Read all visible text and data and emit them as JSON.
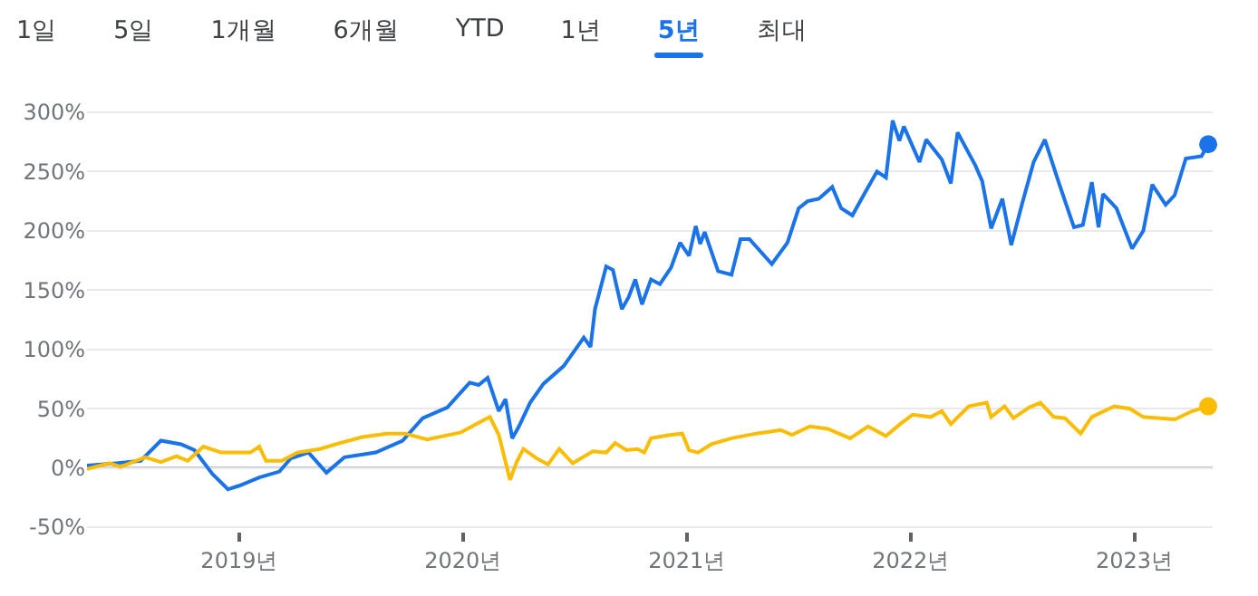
{
  "chart_data": {
    "type": "line",
    "annotations": [
      "1일",
      "5일",
      "1개월",
      "6개월",
      "YTD",
      "1년",
      "5년",
      "최대"
    ],
    "series": [
      {
        "color": "#1a73e8",
        "x": [
          2018.32,
          2018.45,
          2018.56,
          2018.65,
          2018.74,
          2018.8,
          2018.88,
          2018.95,
          2019.0,
          2019.09,
          2019.18,
          2019.23,
          2019.31,
          2019.39,
          2019.47,
          2019.61,
          2019.73,
          2019.82,
          2019.93,
          2020.03,
          2020.07,
          2020.11,
          2020.16,
          2020.19,
          2020.22,
          2020.25,
          2020.3,
          2020.36,
          2020.45,
          2020.54,
          2020.57,
          2020.59,
          2020.64,
          2020.67,
          2020.71,
          2020.74,
          2020.77,
          2020.8,
          2020.84,
          2020.88,
          2020.93,
          2020.97,
          2021.01,
          2021.04,
          2021.06,
          2021.08,
          2021.14,
          2021.2,
          2021.24,
          2021.28,
          2021.38,
          2021.45,
          2021.5,
          2021.54,
          2021.59,
          2021.65,
          2021.69,
          2021.74,
          2021.79,
          2021.85,
          2021.89,
          2021.92,
          2021.95,
          2021.97,
          2022.04,
          2022.07,
          2022.14,
          2022.18,
          2022.21,
          2022.29,
          2022.32,
          2022.36,
          2022.41,
          2022.45,
          2022.5,
          2022.55,
          2022.6,
          2022.66,
          2022.73,
          2022.77,
          2022.81,
          2022.84,
          2022.86,
          2022.92,
          2022.99,
          2023.04,
          2023.08,
          2023.14,
          2023.18,
          2023.23,
          2023.3,
          2023.33
        ],
        "values": [
          2,
          4,
          6,
          23,
          20,
          15,
          -5,
          -18,
          -15,
          -8,
          -3,
          8,
          13,
          -4,
          9,
          13,
          23,
          42,
          51,
          72,
          70,
          76,
          48,
          58,
          25,
          35,
          55,
          71,
          86,
          110,
          102,
          134,
          170,
          167,
          134,
          144,
          159,
          138,
          159,
          155,
          169,
          190,
          179,
          204,
          189,
          199,
          166,
          163,
          193,
          193,
          172,
          190,
          219,
          225,
          227,
          237,
          219,
          213,
          230,
          250,
          245,
          293,
          276,
          288,
          258,
          277,
          260,
          240,
          283,
          255,
          242,
          202,
          227,
          188,
          224,
          258,
          277,
          242,
          203,
          205,
          241,
          203,
          231,
          219,
          185,
          200,
          239,
          222,
          230,
          261,
          263,
          273
        ]
      },
      {
        "color": "#fbbc04",
        "x": [
          2018.32,
          2018.42,
          2018.47,
          2018.58,
          2018.65,
          2018.72,
          2018.77,
          2018.84,
          2018.92,
          2019.05,
          2019.09,
          2019.12,
          2019.19,
          2019.26,
          2019.36,
          2019.45,
          2019.55,
          2019.66,
          2019.74,
          2019.84,
          2019.99,
          2020.12,
          2020.16,
          2020.21,
          2020.24,
          2020.27,
          2020.33,
          2020.38,
          2020.43,
          2020.49,
          2020.58,
          2020.64,
          2020.68,
          2020.73,
          2020.78,
          2020.81,
          2020.84,
          2020.93,
          2020.98,
          2021.01,
          2021.05,
          2021.11,
          2021.2,
          2021.31,
          2021.42,
          2021.47,
          2021.55,
          2021.63,
          2021.73,
          2021.81,
          2021.89,
          2021.96,
          2022.01,
          2022.09,
          2022.14,
          2022.18,
          2022.26,
          2022.34,
          2022.36,
          2022.42,
          2022.46,
          2022.53,
          2022.58,
          2022.64,
          2022.69,
          2022.76,
          2022.81,
          2022.91,
          2022.98,
          2023.04,
          2023.18,
          2023.26,
          2023.33
        ],
        "values": [
          -1,
          4,
          1,
          9,
          5,
          10,
          6,
          18,
          13,
          13,
          18,
          6,
          6,
          13,
          16,
          21,
          26,
          29,
          29,
          24,
          30,
          43,
          28,
          -10,
          5,
          16,
          8,
          3,
          16,
          4,
          14,
          13,
          21,
          15,
          16,
          13,
          25,
          28,
          29,
          15,
          13,
          20,
          25,
          29,
          32,
          28,
          35,
          33,
          25,
          35,
          27,
          38,
          45,
          43,
          48,
          37,
          52,
          55,
          43,
          52,
          42,
          51,
          55,
          43,
          42,
          29,
          43,
          52,
          50,
          43,
          41,
          48,
          52
        ]
      }
    ],
    "xlim": [
      2018.32,
      2023.35
    ],
    "xticks": [
      {
        "value": 2019,
        "label": "2019년"
      },
      {
        "value": 2020,
        "label": "2020년"
      },
      {
        "value": 2021,
        "label": "2021년"
      },
      {
        "value": 2022,
        "label": "2022년"
      },
      {
        "value": 2023,
        "label": "2023년"
      }
    ],
    "ylim": [
      -53,
      303
    ],
    "yticks": [
      {
        "value": -50,
        "label": "-50%"
      },
      {
        "value": 0,
        "label": "0%"
      },
      {
        "value": 50,
        "label": "50%"
      },
      {
        "value": 100,
        "label": "100%"
      },
      {
        "value": 150,
        "label": "150%"
      },
      {
        "value": 200,
        "label": "200%"
      },
      {
        "value": 250,
        "label": "250%"
      },
      {
        "value": 300,
        "label": "300%"
      }
    ],
    "ref_lines": [
      {
        "axis": "y",
        "value": 0,
        "color": "#80868b"
      }
    ],
    "grid": "y",
    "marker": "none",
    "line_style": "solid"
  }
}
